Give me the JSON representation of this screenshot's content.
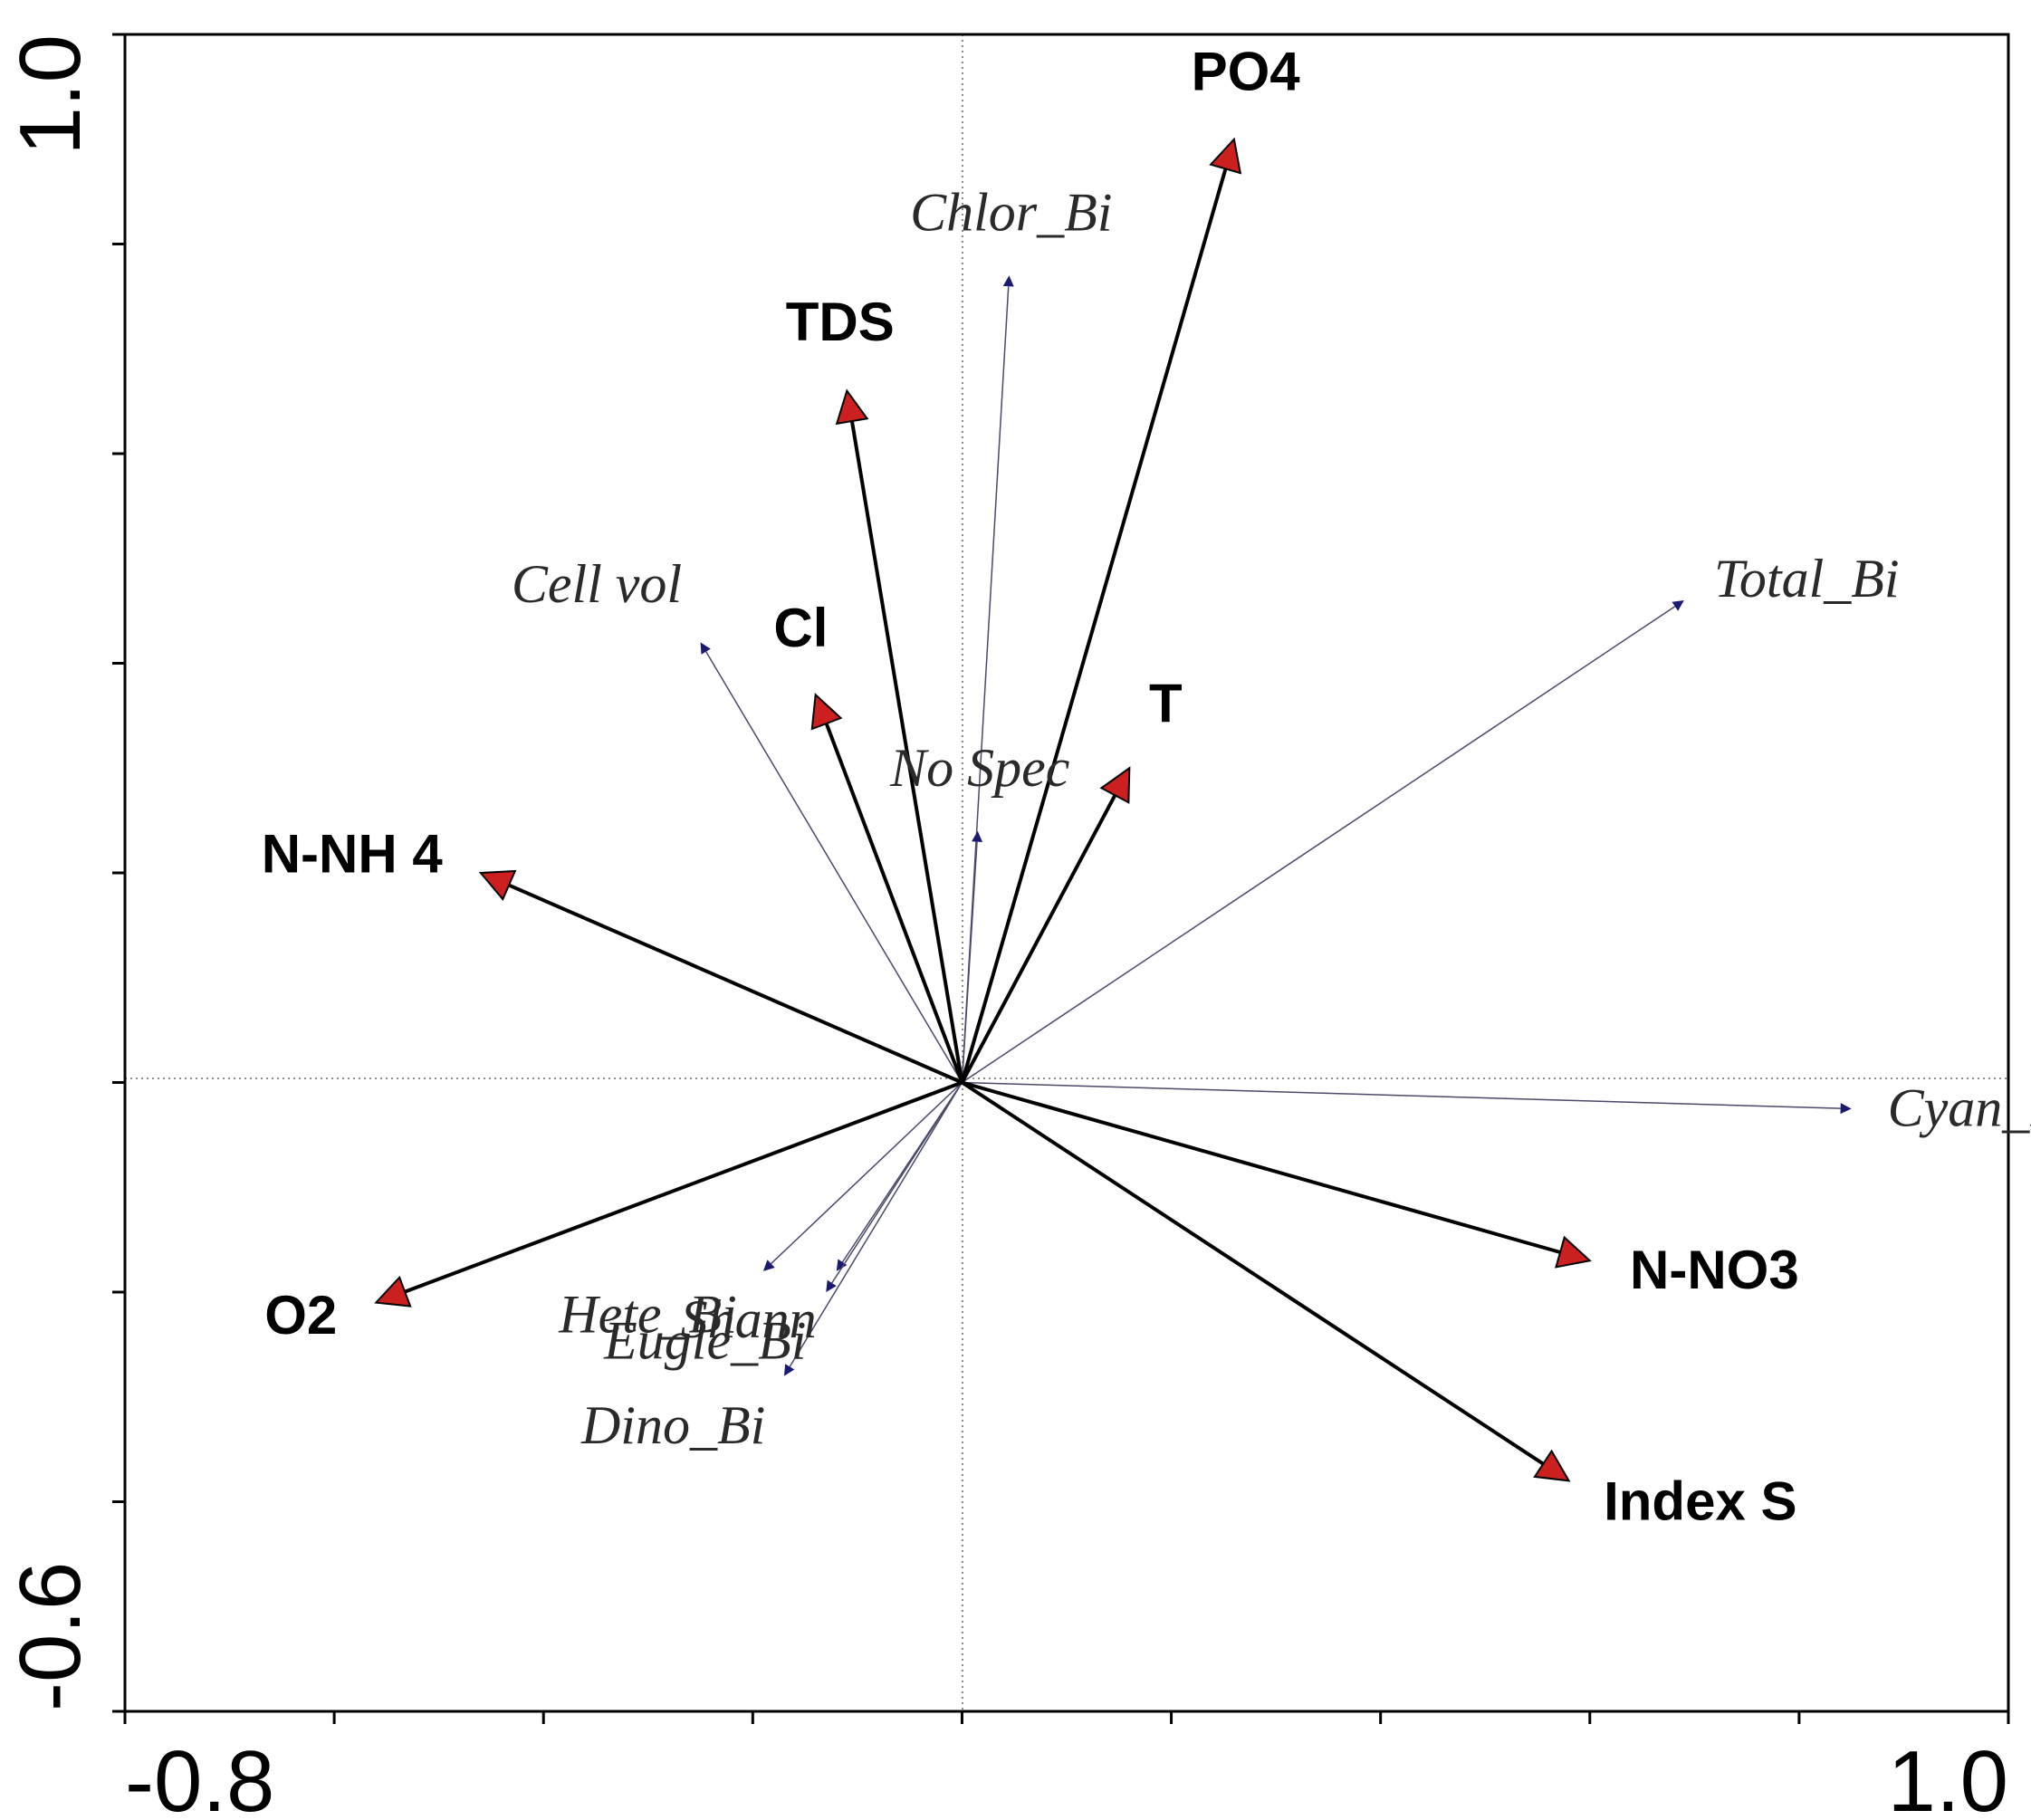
{
  "chart_data": {
    "type": "scatter",
    "subtype": "ordination-biplot",
    "title": "",
    "xlabel": "",
    "ylabel": "",
    "xlim": [
      -0.8,
      1.0
    ],
    "ylim": [
      -0.6,
      1.0
    ],
    "x_tick_labels": [
      "-0.8",
      "1.0"
    ],
    "y_tick_labels": [
      "-0.6",
      "1.0"
    ],
    "x_ticks": [
      -0.8,
      -0.6,
      -0.4,
      -0.2,
      0.0,
      0.2,
      0.4,
      0.6,
      0.8,
      1.0
    ],
    "y_ticks": [
      -0.6,
      -0.4,
      -0.2,
      0.0,
      0.2,
      0.4,
      0.6,
      0.8,
      1.0
    ],
    "zero_lines": true,
    "grid": false,
    "environmental_vectors": [
      {
        "label": "PO4",
        "x": 0.26,
        "y": 0.9
      },
      {
        "label": "TDS",
        "x": -0.11,
        "y": 0.66
      },
      {
        "label": "Cl",
        "x": -0.14,
        "y": 0.37
      },
      {
        "label": "T",
        "x": 0.16,
        "y": 0.3
      },
      {
        "label": "N-NH 4",
        "x": -0.46,
        "y": 0.2
      },
      {
        "label": "O2",
        "x": -0.56,
        "y": -0.21
      },
      {
        "label": "N-NO3",
        "x": 0.6,
        "y": -0.17
      },
      {
        "label": "Index S",
        "x": 0.58,
        "y": -0.38
      }
    ],
    "species_vectors": [
      {
        "label": "Chlor_Bi",
        "x": 0.045,
        "y": 0.77
      },
      {
        "label": "Total_Bi",
        "x": 0.69,
        "y": 0.46
      },
      {
        "label": "Cell vol",
        "x": -0.25,
        "y": 0.42
      },
      {
        "label": "No Spec",
        "x": 0.015,
        "y": 0.24
      },
      {
        "label": "Cyan_Bi",
        "x": 0.85,
        "y": -0.025
      },
      {
        "label": "Hete_Bi",
        "x": -0.19,
        "y": -0.18
      },
      {
        "label": "Shann",
        "x": -0.12,
        "y": -0.18
      },
      {
        "label": "Eugle_Bi",
        "x": -0.13,
        "y": -0.2
      },
      {
        "label": "Dino_Bi",
        "x": -0.17,
        "y": -0.28
      }
    ]
  }
}
